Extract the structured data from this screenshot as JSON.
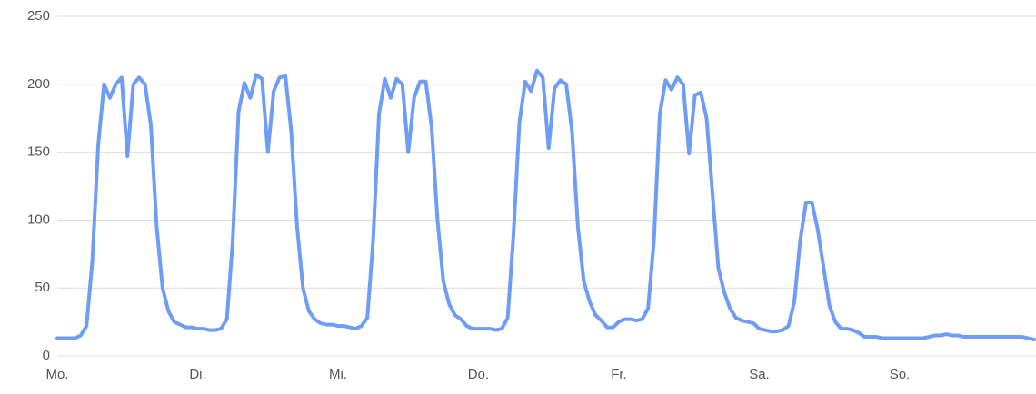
{
  "chart_data": {
    "type": "line",
    "categories": [
      "Mo.",
      null,
      null,
      null,
      null,
      null,
      null,
      null,
      null,
      null,
      null,
      null,
      null,
      null,
      null,
      null,
      null,
      null,
      null,
      null,
      null,
      null,
      null,
      null,
      "Di.",
      null,
      null,
      null,
      null,
      null,
      null,
      null,
      null,
      null,
      null,
      null,
      null,
      null,
      null,
      null,
      null,
      null,
      null,
      null,
      null,
      null,
      null,
      null,
      "Mi.",
      null,
      null,
      null,
      null,
      null,
      null,
      null,
      null,
      null,
      null,
      null,
      null,
      null,
      null,
      null,
      null,
      null,
      null,
      null,
      null,
      null,
      null,
      null,
      "Do.",
      null,
      null,
      null,
      null,
      null,
      null,
      null,
      null,
      null,
      null,
      null,
      null,
      null,
      null,
      null,
      null,
      null,
      null,
      null,
      null,
      null,
      null,
      null,
      "Fr.",
      null,
      null,
      null,
      null,
      null,
      null,
      null,
      null,
      null,
      null,
      null,
      null,
      null,
      null,
      null,
      null,
      null,
      null,
      null,
      null,
      null,
      null,
      null,
      "Sa.",
      null,
      null,
      null,
      null,
      null,
      null,
      null,
      null,
      null,
      null,
      null,
      null,
      null,
      null,
      null,
      null,
      null,
      null,
      null,
      null,
      null,
      null,
      null,
      "So.",
      null,
      null,
      null,
      null,
      null,
      null,
      null,
      null,
      null,
      null,
      null,
      null,
      null,
      null,
      null,
      null,
      null,
      null,
      null,
      null,
      null,
      null,
      null
    ],
    "values": [
      13,
      13,
      13,
      13,
      15,
      22,
      70,
      155,
      200,
      190,
      200,
      205,
      147,
      200,
      205,
      200,
      170,
      95,
      50,
      33,
      25,
      23,
      21,
      21,
      20,
      20,
      19,
      19,
      20,
      27,
      85,
      180,
      201,
      190,
      207,
      204,
      150,
      195,
      205,
      206,
      165,
      95,
      50,
      33,
      27,
      24,
      23,
      23,
      22,
      22,
      21,
      20,
      22,
      28,
      85,
      178,
      204,
      190,
      204,
      200,
      150,
      190,
      202,
      202,
      168,
      100,
      55,
      38,
      30,
      27,
      22,
      20,
      20,
      20,
      20,
      19,
      20,
      28,
      90,
      172,
      202,
      195,
      210,
      205,
      153,
      197,
      203,
      200,
      165,
      95,
      55,
      40,
      30,
      26,
      21,
      21,
      25,
      27,
      27,
      26,
      27,
      35,
      85,
      178,
      203,
      196,
      205,
      200,
      149,
      192,
      194,
      175,
      120,
      65,
      47,
      35,
      28,
      26,
      25,
      24,
      20,
      19,
      18,
      18,
      19,
      22,
      40,
      85,
      113,
      113,
      93,
      65,
      37,
      25,
      20,
      20,
      19,
      17,
      14,
      14,
      14,
      13,
      13,
      13,
      13,
      13,
      13,
      13,
      13,
      14,
      15,
      15,
      16,
      15,
      15,
      14,
      14,
      14,
      14,
      14,
      14,
      14,
      14,
      14,
      14,
      14,
      13,
      12
    ],
    "color": "#6f9cf5",
    "ylim": [
      0,
      250
    ],
    "yticks": [
      0,
      50,
      100,
      150,
      200,
      250
    ],
    "grid": true
  }
}
